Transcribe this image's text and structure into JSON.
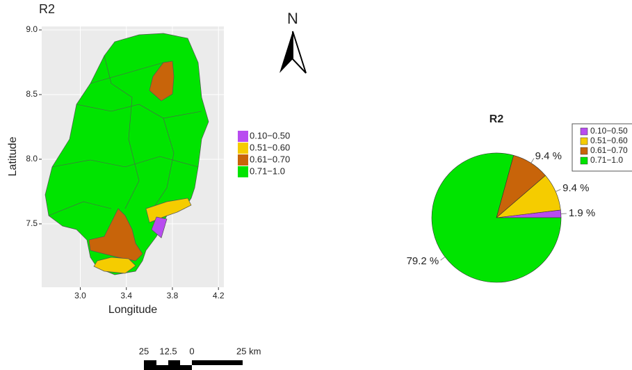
{
  "map": {
    "title": "R2",
    "x_label": "Longitude",
    "y_label": "Latitude",
    "xlim": [
      2.665,
      4.247
    ],
    "ylim": [
      7.01,
      9.027
    ],
    "xticks": [
      {
        "value": 3,
        "label": "3.0"
      },
      {
        "value": 3.4,
        "label": "3.4"
      },
      {
        "value": 3.8,
        "label": "3.8"
      },
      {
        "value": 4.2,
        "label": "4.2"
      }
    ],
    "yticks": [
      {
        "value": 9,
        "label": "9.0"
      },
      {
        "value": 8.5,
        "label": "8.5"
      },
      {
        "value": 8,
        "label": "8.0"
      },
      {
        "value": 7.5,
        "label": "7.5"
      }
    ],
    "legend": {
      "labels": [
        "0.10−0.50",
        "0.51−0.60",
        "0.61−0.70",
        "0.71−1.0"
      ],
      "colors": [
        "#b84cf0",
        "#f5cc00",
        "#c8640a",
        "#00e400"
      ]
    },
    "north": "N",
    "scale_bar": {
      "labels": [
        "25",
        "12.5",
        "0",
        "25 km"
      ]
    }
  },
  "chart_data": {
    "type": "pie",
    "title": "R2",
    "categories": [
      "0.10−0.50",
      "0.51−0.60",
      "0.61−0.70",
      "0.71−1.0"
    ],
    "values": [
      1.9,
      9.4,
      9.4,
      79.2
    ],
    "value_labels": [
      "1.9 %",
      "9.4 %",
      "9.4 %",
      "79.2 %"
    ],
    "colors": [
      "#b84cf0",
      "#f5cc00",
      "#c8640a",
      "#00e400"
    ]
  }
}
